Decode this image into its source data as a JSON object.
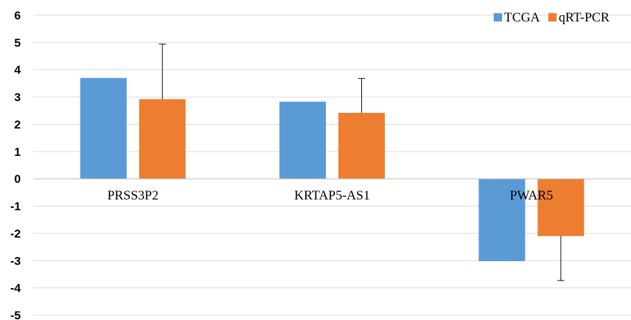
{
  "chart_data": {
    "type": "bar",
    "categories": [
      "PRSS3P2",
      "KRTAP5-AS1",
      "PWAR5"
    ],
    "series": [
      {
        "name": "TCGA",
        "values": [
          3.7,
          2.83,
          -3.02
        ],
        "error_high": [
          0,
          0,
          0
        ],
        "error_low": [
          0,
          0,
          0
        ],
        "color": "#5b9bd5"
      },
      {
        "name": "qRT-PCR",
        "values": [
          2.92,
          2.42,
          -2.1
        ],
        "error_high": [
          2.02,
          1.26,
          0
        ],
        "error_low": [
          0,
          0,
          1.63
        ],
        "color": "#ed7d31"
      }
    ],
    "ylim": [
      -5,
      6
    ],
    "yticks": [
      6,
      5,
      4,
      3,
      2,
      1,
      0,
      -1,
      -2,
      -3,
      -4,
      -5
    ],
    "grid": true,
    "legend": "top-right",
    "title": "",
    "xlabel": "",
    "ylabel": ""
  }
}
